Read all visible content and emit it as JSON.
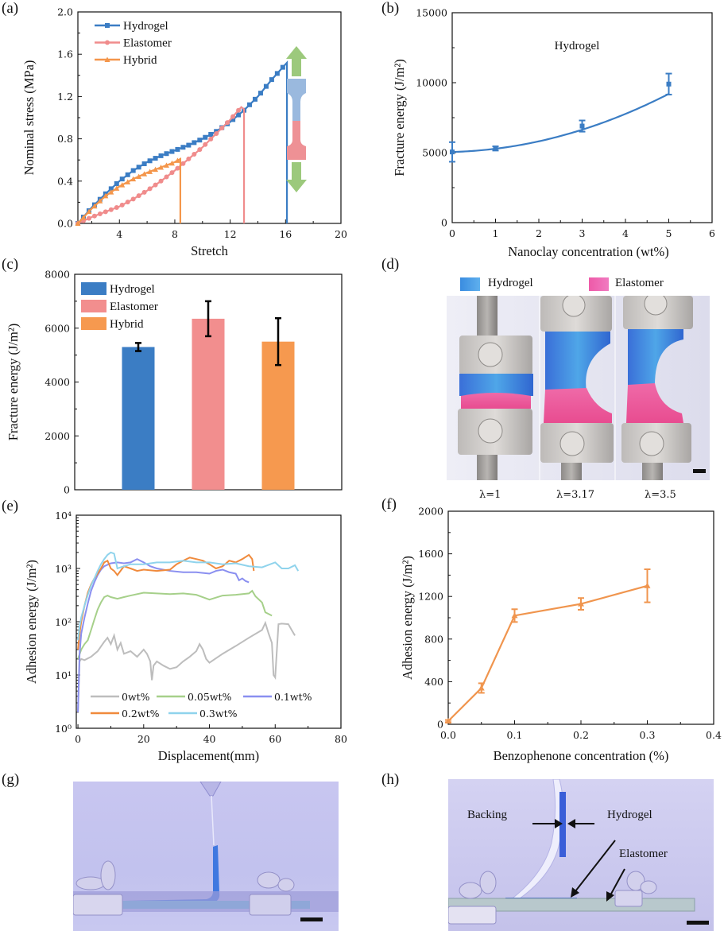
{
  "figure": {
    "panel_labels": [
      "(a)",
      "(b)",
      "(c)",
      "(d)",
      "(e)",
      "(f)",
      "(g)",
      "(h)"
    ]
  },
  "chart_data": [
    {
      "id": "a",
      "type": "line",
      "xlabel": "Stretch",
      "ylabel": "Nominal stress (MPa)",
      "xlim": [
        1,
        20
      ],
      "ylim": [
        0,
        2.0
      ],
      "xticks": [
        "4",
        "8",
        "12",
        "16",
        "20"
      ],
      "yticks": [
        "0.0",
        "0.4",
        "0.8",
        "1.2",
        "1.6",
        "2.0"
      ],
      "legend": "top-left",
      "series": [
        {
          "name": "Hydrogel",
          "color": "#3b7dc4",
          "marker": "square",
          "x": [
            1,
            2,
            3,
            4,
            5,
            6,
            7,
            8,
            9,
            10,
            11,
            12,
            13,
            14,
            15,
            16.1,
            16.1
          ],
          "y": [
            0,
            0.15,
            0.28,
            0.4,
            0.5,
            0.58,
            0.64,
            0.69,
            0.74,
            0.8,
            0.87,
            0.96,
            1.07,
            1.2,
            1.36,
            1.52,
            0
          ]
        },
        {
          "name": "Elastomer",
          "color": "#f08c8c",
          "marker": "circle",
          "x": [
            1,
            2,
            3,
            4,
            5,
            6,
            7,
            8,
            9,
            10,
            11,
            12,
            12.8,
            13.0,
            13.0
          ],
          "y": [
            0,
            0.06,
            0.11,
            0.16,
            0.23,
            0.31,
            0.4,
            0.5,
            0.61,
            0.72,
            0.85,
            0.98,
            1.1,
            1.08,
            0
          ]
        },
        {
          "name": "Hybrid",
          "color": "#f4964b",
          "marker": "triangle",
          "x": [
            1,
            2,
            3,
            4,
            5,
            6,
            7,
            8,
            8.4,
            8.4
          ],
          "y": [
            0,
            0.14,
            0.26,
            0.35,
            0.42,
            0.48,
            0.53,
            0.58,
            0.61,
            0
          ]
        }
      ],
      "inset": "dog-bone specimen schematic (blue hydrogel over red elastomer) with green up/down tension arrows"
    },
    {
      "id": "b",
      "type": "line",
      "xlabel": "Nanoclay concentration (wt%)",
      "ylabel": "Fracture energy (J/m²)",
      "xlim": [
        0,
        6
      ],
      "ylim": [
        0,
        15000
      ],
      "xticks": [
        "0",
        "1",
        "2",
        "3",
        "4",
        "5",
        "6"
      ],
      "yticks": [
        "0",
        "5000",
        "10000",
        "15000"
      ],
      "annotation": "Hydrogel",
      "series": [
        {
          "name": "Hydrogel",
          "color": "#3b7dc4",
          "x": [
            0,
            1,
            3,
            5
          ],
          "y": [
            5050,
            5300,
            6900,
            9900
          ],
          "yerr": [
            700,
            150,
            400,
            750
          ]
        }
      ],
      "fit_curve": true
    },
    {
      "id": "c",
      "type": "bar",
      "ylabel": "Fracture energy (J/m²)",
      "ylim": [
        0,
        8000
      ],
      "yticks": [
        "0",
        "2000",
        "4000",
        "6000",
        "8000"
      ],
      "legend": "top-left",
      "categories": [
        "Hydrogel",
        "Elastomer",
        "Hybrid"
      ],
      "values": [
        5300,
        6350,
        5500
      ],
      "errors": [
        150,
        650,
        870
      ],
      "colors": [
        "#3b7dc4",
        "#f28e8e",
        "#f6994f"
      ]
    },
    {
      "id": "e",
      "type": "line",
      "xlabel": "Displacement(mm)",
      "ylabel": "Adhesion energy (J/m²)",
      "yscale": "log",
      "xlim": [
        -0.5,
        80
      ],
      "ylim": [
        1,
        10000
      ],
      "xticks": [
        "0",
        "20",
        "40",
        "60",
        "80"
      ],
      "yticks": [
        "10⁰",
        "10¹",
        "10²",
        "10³",
        "10⁴"
      ],
      "legend": "bottom",
      "series": [
        {
          "name": "0wt%",
          "color": "#bdbdbd",
          "x": [
            0,
            0.5,
            1,
            2,
            4,
            6,
            8,
            9,
            10,
            11,
            12,
            13,
            14,
            16,
            18,
            20,
            21,
            22,
            22.5,
            23,
            24,
            26,
            28,
            30,
            32,
            34,
            36,
            37,
            38,
            39,
            40,
            44,
            48,
            52,
            56,
            57,
            58,
            59,
            59.5,
            60,
            61,
            62,
            64,
            65,
            66
          ],
          "y": [
            2,
            18,
            20,
            19,
            22,
            28,
            42,
            50,
            38,
            55,
            30,
            40,
            25,
            28,
            22,
            30,
            25,
            18,
            8,
            15,
            18,
            15,
            13,
            14,
            18,
            22,
            28,
            38,
            30,
            20,
            17,
            25,
            35,
            50,
            70,
            95,
            60,
            40,
            10,
            9,
            90,
            92,
            90,
            70,
            55
          ]
        },
        {
          "name": "0.05wt%",
          "color": "#a6d08a",
          "x": [
            0,
            1,
            2,
            3,
            4,
            5,
            6,
            7,
            8,
            9,
            10,
            12,
            14,
            16,
            20,
            24,
            28,
            32,
            36,
            40,
            44,
            48,
            52,
            53,
            54,
            56,
            57,
            58,
            59
          ],
          "y": [
            20,
            30,
            38,
            45,
            70,
            110,
            170,
            230,
            290,
            310,
            290,
            270,
            290,
            310,
            350,
            340,
            330,
            340,
            320,
            260,
            310,
            320,
            340,
            380,
            300,
            230,
            150,
            140,
            130
          ]
        },
        {
          "name": "0.1wt%",
          "color": "#8a8ff0",
          "x": [
            0,
            0.5,
            1,
            2,
            3,
            4,
            5,
            6,
            7,
            8,
            10,
            12,
            14,
            16,
            18,
            20,
            22,
            24,
            28,
            32,
            36,
            40,
            42,
            44,
            46,
            48,
            49,
            50,
            51,
            52
          ],
          "y": [
            2,
            25,
            60,
            120,
            220,
            380,
            550,
            750,
            950,
            1100,
            1250,
            1300,
            1250,
            1300,
            1500,
            1300,
            1100,
            1000,
            900,
            850,
            850,
            800,
            900,
            950,
            850,
            800,
            600,
            650,
            580,
            550
          ]
        },
        {
          "name": "0.2wt%",
          "color": "#f08a3c",
          "x": [
            0,
            0.5,
            1,
            2,
            3,
            4,
            5,
            6,
            7,
            8,
            9,
            10,
            11,
            12,
            14,
            16,
            18,
            20,
            24,
            28,
            30,
            32,
            34,
            36,
            38,
            40,
            42,
            44,
            46,
            48,
            50,
            52,
            53,
            53.5
          ],
          "y": [
            30,
            60,
            100,
            200,
            350,
            500,
            650,
            800,
            1000,
            1300,
            1400,
            1000,
            900,
            750,
            1100,
            1000,
            900,
            950,
            900,
            950,
            1200,
            1400,
            1600,
            1500,
            1400,
            1200,
            1000,
            1100,
            1400,
            1300,
            1500,
            1800,
            1500,
            900
          ]
        },
        {
          "name": "0.3wt%",
          "color": "#8fd3ec",
          "x": [
            0,
            0.5,
            1,
            2,
            3,
            4,
            5,
            6,
            7,
            8,
            9,
            10,
            11,
            12,
            14,
            16,
            20,
            24,
            28,
            32,
            36,
            40,
            44,
            48,
            52,
            56,
            60,
            62,
            64,
            66,
            67
          ],
          "y": [
            45,
            80,
            120,
            200,
            320,
            480,
            650,
            900,
            1200,
            1500,
            1800,
            2000,
            1900,
            1000,
            1100,
            1200,
            1200,
            1300,
            1300,
            1400,
            1300,
            1300,
            1200,
            1250,
            1100,
            1050,
            1300,
            1000,
            1000,
            1150,
            900
          ]
        }
      ]
    },
    {
      "id": "f",
      "type": "line",
      "xlabel": "Benzophenone concentration (%)",
      "ylabel": "Adhesion energy (J/m²)",
      "xlim": [
        0,
        0.4
      ],
      "ylim": [
        0,
        2000
      ],
      "xticks": [
        "0.0",
        "0.1",
        "0.2",
        "0.3",
        "0.4"
      ],
      "yticks": [
        "0",
        "400",
        "800",
        "1200",
        "1600",
        "2000"
      ],
      "series": [
        {
          "name": "Adhesion",
          "color": "#f0954e",
          "x": [
            0.0,
            0.05,
            0.1,
            0.2,
            0.3
          ],
          "y": [
            30,
            340,
            1020,
            1130,
            1300
          ],
          "yerr": [
            10,
            45,
            60,
            55,
            155
          ]
        }
      ]
    }
  ],
  "panel_d": {
    "legend": [
      {
        "label": "Hydrogel",
        "color": "#3b8ee0"
      },
      {
        "label": "Elastomer",
        "color": "#ee5ea8"
      }
    ],
    "captions": [
      "λ=1",
      "λ=3.17",
      "λ=3.5"
    ]
  },
  "panel_h": {
    "annotations": {
      "backing": "Backing",
      "hydrogel": "Hydrogel",
      "elastomer": "Elastomer"
    }
  }
}
